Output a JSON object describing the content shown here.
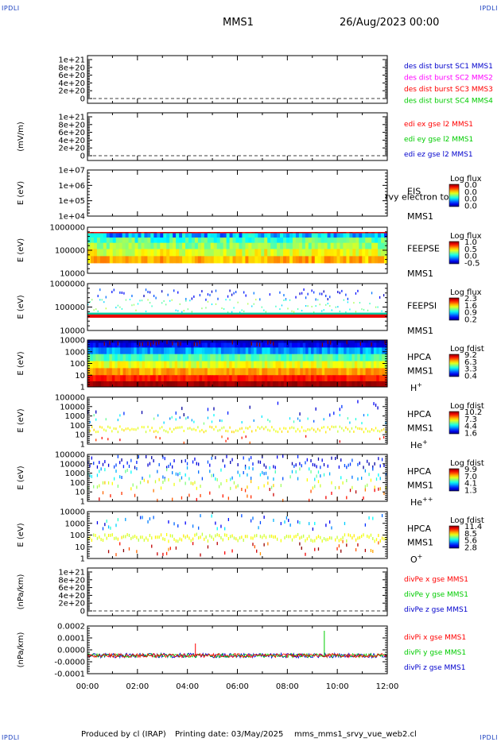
{
  "header": {
    "title": "MMS1",
    "date": "26/Aug/2023 00:00"
  },
  "corner_tag": "IPDLI",
  "footer": {
    "produced": "Produced by cl (IRAP)",
    "printing": "Printing date: 03/May/2025",
    "script": "mms_mms1_srvy_vue_web2.cl"
  },
  "colors": {
    "red": "#ff0000",
    "green": "#00cc00",
    "blue": "#0000cc",
    "magenta": "#ff00ff",
    "dark": "#000000"
  },
  "chart_data": [
    {
      "type": "line",
      "ylabel": "",
      "yticks": [
        "1e+21",
        "8e+20",
        "6e+20",
        "4e+20",
        "2e+20",
        "0"
      ],
      "legend": [
        {
          "text": "des dist burst SC1 MMS1",
          "color": "#0000cc"
        },
        {
          "text": "des dist burst SC2 MMS2",
          "color": "#ff00ff"
        },
        {
          "text": "des dist burst SC3 MMS3",
          "color": "#ff0000"
        },
        {
          "text": "des dist burst SC4 MMS4",
          "color": "#00cc00"
        }
      ]
    },
    {
      "type": "line",
      "ylabel": "(mV/m)",
      "yticks": [
        "1e+21",
        "8e+20",
        "6e+20",
        "4e+20",
        "2e+20",
        "0"
      ],
      "legend": [
        {
          "text": "edi ex gse l2 MMS1",
          "color": "#ff0000"
        },
        {
          "text": "edi ey gse l2 MMS1",
          "color": "#00cc00"
        },
        {
          "text": "edi ez gse l2 MMS1",
          "color": "#0000cc"
        }
      ]
    },
    {
      "type": "heatmap",
      "ylabel": "E (eV)",
      "yticks": [
        "1e+07",
        "1e+06",
        "1e+05",
        "1e+04"
      ],
      "side": [
        "EIS",
        "MMS1"
      ],
      "overlay": "rvy electron to",
      "colorbar": {
        "title": "Log flux",
        "values": [
          "0.0",
          "0.0",
          "0.0",
          "0.0"
        ]
      }
    },
    {
      "type": "heatmap",
      "ylabel": "E (eV)",
      "yticks": [
        "1000000",
        "100000",
        "10000"
      ],
      "side": [
        "FEEPSE",
        "MMS1"
      ],
      "colorbar": {
        "title": "Log flux",
        "values": [
          "1.0",
          "0.5",
          "0.0",
          "-0.5"
        ]
      }
    },
    {
      "type": "heatmap",
      "ylabel": "E (eV)",
      "yticks": [
        "1000000",
        "100000",
        "10000"
      ],
      "side": [
        "FEEPSI",
        "MMS1"
      ],
      "colorbar": {
        "title": "Log flux",
        "values": [
          "2.3",
          "1.6",
          "0.9",
          "0.2"
        ]
      }
    },
    {
      "type": "heatmap",
      "ylabel": "E (eV)",
      "yticks": [
        "10000",
        "1000",
        "100",
        "10",
        "1"
      ],
      "side": [
        "HPCA",
        "MMS1",
        "H+"
      ],
      "colorbar": {
        "title": "Log fdist",
        "values": [
          "9.2",
          "6.3",
          "3.3",
          "0.4"
        ]
      }
    },
    {
      "type": "heatmap",
      "ylabel": "E (eV)",
      "yticks": [
        "100000",
        "10000",
        "1000",
        "100",
        "10",
        "1"
      ],
      "side": [
        "HPCA",
        "MMS1",
        "He+"
      ],
      "colorbar": {
        "title": "Log fdist",
        "values": [
          "10.2",
          "7.3",
          "4.4",
          "1.6"
        ]
      }
    },
    {
      "type": "heatmap",
      "ylabel": "E (eV)",
      "yticks": [
        "100000",
        "10000",
        "1000",
        "100",
        "10",
        "1"
      ],
      "side": [
        "HPCA",
        "MMS1",
        "He++"
      ],
      "colorbar": {
        "title": "Log fdist",
        "values": [
          "9.9",
          "7.0",
          "4.1",
          "1.3"
        ]
      }
    },
    {
      "type": "heatmap",
      "ylabel": "E (eV)",
      "yticks": [
        "10000",
        "1000",
        "100",
        "10",
        "1"
      ],
      "side": [
        "HPCA",
        "MMS1",
        "O+"
      ],
      "colorbar": {
        "title": "Log fdist",
        "values": [
          "11.4",
          "8.5",
          "5.6",
          "2.8"
        ]
      }
    },
    {
      "type": "line",
      "ylabel": "(nPa/km)",
      "yticks": [
        "1e+21",
        "8e+20",
        "6e+20",
        "4e+20",
        "2e+20",
        "0"
      ],
      "legend": [
        {
          "text": "divPe x gse MMS1",
          "color": "#ff0000"
        },
        {
          "text": "divPe y gse MMS1",
          "color": "#00cc00"
        },
        {
          "text": "divPe z gse MMS1",
          "color": "#0000cc"
        }
      ]
    },
    {
      "type": "line",
      "ylabel": "(nPa/km)",
      "yticks": [
        "0.0002",
        "0.0001",
        "0.0000",
        "-0.0000",
        "-0.0001"
      ],
      "legend": [
        {
          "text": "divPi x gse MMS1",
          "color": "#ff0000"
        },
        {
          "text": "divPi y gse MMS1",
          "color": "#00cc00"
        },
        {
          "text": "divPi z gse MMS1",
          "color": "#0000cc"
        }
      ]
    }
  ],
  "xaxis": {
    "ticks": [
      "00:00",
      "02:00",
      "04:00",
      "06:00",
      "08:00",
      "10:00",
      "12:00"
    ]
  }
}
